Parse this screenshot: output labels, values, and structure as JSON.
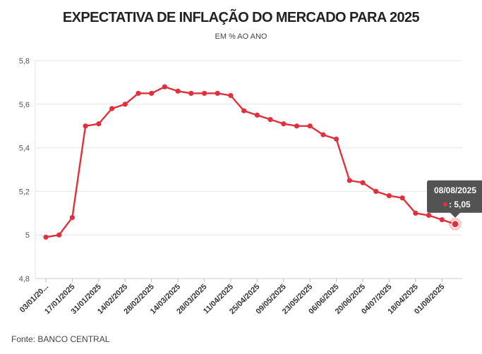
{
  "chart_data": {
    "type": "line",
    "title": "EXPECTATIVA DE INFLAÇÃO DO MERCADO PARA 2025",
    "subtitle": "EM % AO ANO",
    "source": "Fonte: BANCO CENTRAL",
    "ylim": [
      4.8,
      5.8
    ],
    "yticks": [
      "4,8",
      "5",
      "5,2",
      "5,4",
      "5,6",
      "5,8"
    ],
    "xtick_labels": [
      "03/01/20...",
      "17/01/2025",
      "31/01/2025",
      "14/02/2025",
      "28/02/2025",
      "14/03/2025",
      "28/03/2025",
      "11/04/2025",
      "25/04/2025",
      "09/05/2025",
      "23/05/2025",
      "06/06/2025",
      "20/06/2025",
      "04/07/2025",
      "18/04/2025",
      "01/08/2025"
    ],
    "grid": true,
    "line_color": "#e0303c",
    "series": [
      {
        "values": [
          4.99,
          5.0,
          5.08,
          5.5,
          5.51,
          5.58,
          5.6,
          5.65,
          5.65,
          5.68,
          5.66,
          5.65,
          5.65,
          5.65,
          5.64,
          5.57,
          5.55,
          5.53,
          5.51,
          5.5,
          5.5,
          5.46,
          5.44,
          5.25,
          5.24,
          5.2,
          5.18,
          5.17,
          5.1,
          5.09,
          5.07,
          5.05
        ]
      }
    ],
    "tooltip": {
      "date": "08/08/2025",
      "value": ": 5,05"
    }
  }
}
